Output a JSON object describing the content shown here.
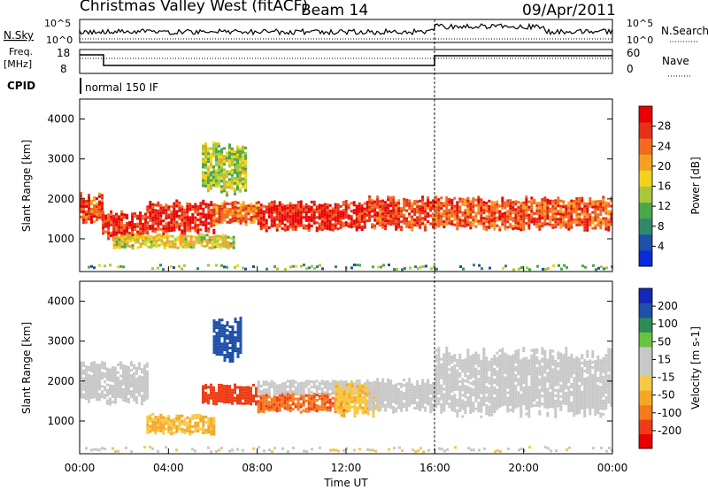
{
  "header": {
    "station": "Christmas Valley West (fitACF)",
    "beam": "Beam 14",
    "date": "09/Apr/2011"
  },
  "top_panels": {
    "nsky_label": "N.Sky",
    "nsky_ticks": [
      "10^5",
      "10^0"
    ],
    "nsearch_label": "N.Search",
    "nsearch_ticks": [
      "10^5",
      "10^0"
    ],
    "freq_label_1": "Freq.",
    "freq_label_2": "[MHz]",
    "freq_ticks": [
      "18",
      "8"
    ],
    "nave_label": "Nave",
    "nave_ticks": [
      "60",
      "0"
    ],
    "cpid_label": "CPID",
    "cpid_text": "normal 150 IF"
  },
  "colors": {
    "power_scale": [
      "#0a2bd9",
      "#1e50a8",
      "#2f8a6a",
      "#4aa84a",
      "#a8c83a",
      "#f2d21e",
      "#f5a01e",
      "#f26a1e",
      "#e83018",
      "#e80000"
    ],
    "velocity_scale": [
      "#e80000",
      "#ee3c14",
      "#f47a1a",
      "#f5a623",
      "#f7c843",
      "#c8c8c8",
      "#c8c8c8",
      "#66c43e",
      "#2e8b57",
      "#1e50a8",
      "#1328b8"
    ]
  },
  "chart_data": [
    {
      "type": "heatmap",
      "name": "power",
      "xlabel": "",
      "ylabel": "Slant Range [km]",
      "xlim": [
        0,
        24
      ],
      "ylim": [
        180,
        4500
      ],
      "yticks": [
        1000,
        2000,
        3000,
        4000
      ],
      "colorbar_label": "Power [dB]",
      "colorbar_ticks": [
        "4",
        "8",
        "12",
        "16",
        "20",
        "24",
        "28"
      ],
      "colorbar_range": [
        0,
        30
      ],
      "echo_bands": [
        {
          "t0": 0.0,
          "t1": 1.0,
          "r0": 1500,
          "r1": 2100,
          "level": 24
        },
        {
          "t0": 1.0,
          "t1": 3.0,
          "r0": 1000,
          "r1": 1650,
          "level": 26
        },
        {
          "t0": 3.0,
          "t1": 6.0,
          "r0": 1200,
          "r1": 1900,
          "level": 27
        },
        {
          "t0": 6.0,
          "t1": 8.0,
          "r0": 1400,
          "r1": 1900,
          "level": 22
        },
        {
          "t0": 8.0,
          "t1": 13.0,
          "r0": 1300,
          "r1": 1900,
          "level": 27
        },
        {
          "t0": 13.0,
          "t1": 16.0,
          "r0": 1300,
          "r1": 2000,
          "level": 25
        },
        {
          "t0": 16.0,
          "t1": 24.0,
          "r0": 1300,
          "r1": 2000,
          "level": 24
        },
        {
          "t0": 1.5,
          "t1": 7.0,
          "r0": 800,
          "r1": 1100,
          "level": 16
        },
        {
          "t0": 5.5,
          "t1": 7.5,
          "r0": 2200,
          "r1": 3300,
          "level": 14
        }
      ]
    },
    {
      "type": "heatmap",
      "name": "velocity",
      "xlabel": "Time UT",
      "ylabel": "Slant Range [km]",
      "xlim": [
        0,
        24
      ],
      "ylim": [
        180,
        4500
      ],
      "yticks": [
        1000,
        2000,
        3000,
        4000
      ],
      "xticks": [
        "00:00",
        "04:00",
        "08:00",
        "12:00",
        "16:00",
        "20:00",
        "00:00"
      ],
      "colorbar_label": "Velocity [m s-1]",
      "colorbar_ticks": [
        "-200",
        "-100",
        "-50",
        "-15",
        "15",
        "50",
        "100",
        "200"
      ],
      "colorbar_range": [
        -250,
        250
      ],
      "echo_bands": [
        {
          "t0": 0.0,
          "t1": 3.0,
          "r0": 1500,
          "r1": 2400,
          "level": 0
        },
        {
          "t0": 3.0,
          "t1": 6.0,
          "r0": 700,
          "r1": 1150,
          "level": -70
        },
        {
          "t0": 5.5,
          "t1": 8.0,
          "r0": 1500,
          "r1": 1900,
          "level": -180
        },
        {
          "t0": 8.0,
          "t1": 12.0,
          "r0": 1300,
          "r1": 1700,
          "level": -150
        },
        {
          "t0": 8.0,
          "t1": 13.0,
          "r0": 1700,
          "r1": 2000,
          "level": 40
        },
        {
          "t0": 11.5,
          "t1": 13.5,
          "r0": 1200,
          "r1": 1900,
          "level": -60
        },
        {
          "t0": 13.0,
          "t1": 16.0,
          "r0": 1300,
          "r1": 2000,
          "level": 0
        },
        {
          "t0": 16.0,
          "t1": 24.0,
          "r0": 1300,
          "r1": 2700,
          "level": 0
        },
        {
          "t0": 6.0,
          "t1": 7.2,
          "r0": 2600,
          "r1": 3500,
          "level": 180
        }
      ]
    }
  ]
}
